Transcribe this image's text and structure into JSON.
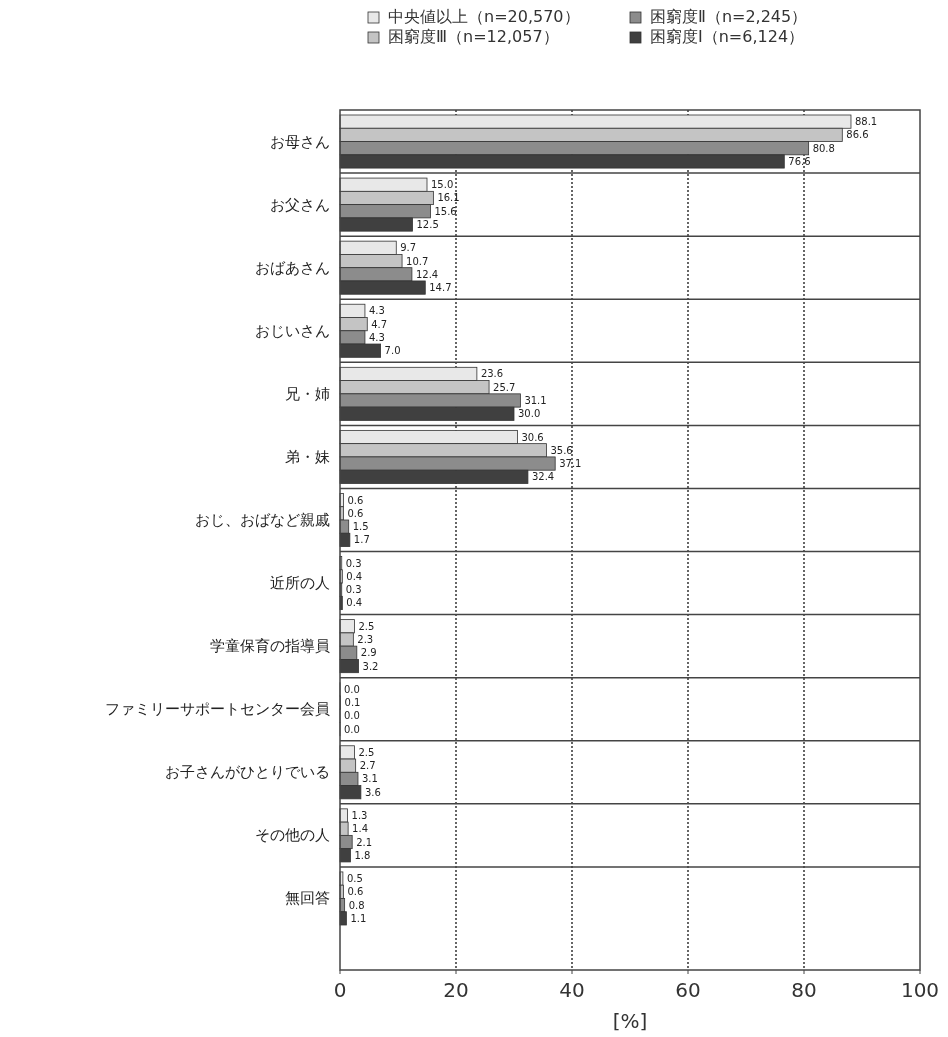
{
  "chart_data": {
    "type": "bar",
    "orientation": "horizontal",
    "xlabel": "[%]",
    "categories": [
      "お母さん",
      "お父さん",
      "おばあさん",
      "おじいさん",
      "兄・姉",
      "弟・妹",
      "おじ、おばなど親戚",
      "近所の人",
      "学童保育の指導員",
      "ファミリーサポートセンター会員",
      "お子さんがひとりでいる",
      "その他の人",
      "無回答"
    ],
    "series": [
      {
        "name": "中央値以上（n=20,570）",
        "color": "#e8e8e8",
        "values": [
          88.1,
          15.0,
          9.7,
          4.3,
          23.6,
          30.6,
          0.6,
          0.3,
          2.5,
          0.0,
          2.5,
          1.3,
          0.5
        ],
        "value_labels": [
          "88.1",
          "15.0",
          "9.7",
          "4.3",
          "23.6",
          "30.6",
          "0.6",
          "0.3",
          "2.5",
          "0.0",
          "2.5",
          "1.3",
          "0.5"
        ]
      },
      {
        "name": "困窮度Ⅲ（n=12,057）",
        "color": "#c4c4c4",
        "values": [
          86.6,
          16.1,
          10.7,
          4.7,
          25.7,
          35.6,
          0.6,
          0.4,
          2.3,
          0.1,
          2.7,
          1.4,
          0.6
        ],
        "value_labels": [
          "86.6",
          "16.1",
          "10.7",
          "4.7",
          "25.7",
          "35.6",
          "0.6",
          "0.4",
          "2.3",
          "0.1",
          "2.7",
          "1.4",
          "0.6"
        ]
      },
      {
        "name": "困窮度Ⅱ（n=2,245）",
        "color": "#8c8c8c",
        "values": [
          80.8,
          15.6,
          12.4,
          4.3,
          31.1,
          37.1,
          1.5,
          0.3,
          2.9,
          0.0,
          3.1,
          2.1,
          0.8
        ],
        "value_labels": [
          "80.8",
          "15.6",
          "12.4",
          "4.3",
          "31.1",
          "37.1",
          "1.5",
          "0.3",
          "2.9",
          "0.0",
          "3.1",
          "2.1",
          "0.8"
        ]
      },
      {
        "name": "困窮度Ⅰ（n=6,124）",
        "color": "#404040",
        "values": [
          76.6,
          12.5,
          14.7,
          7.0,
          30.0,
          32.4,
          1.7,
          0.4,
          3.2,
          0.0,
          3.6,
          1.8,
          1.1
        ],
        "value_labels": [
          "76.6",
          "12.5",
          "14.7",
          "7.0",
          "30.0",
          "32.4",
          "1.7",
          "0.4",
          "3.2",
          "0.0",
          "3.6",
          "1.8",
          "1.1"
        ]
      }
    ],
    "xlim": [
      0,
      100
    ],
    "xticks": [
      0,
      20,
      40,
      60,
      80,
      100
    ],
    "grid": "x",
    "legend": "top"
  }
}
